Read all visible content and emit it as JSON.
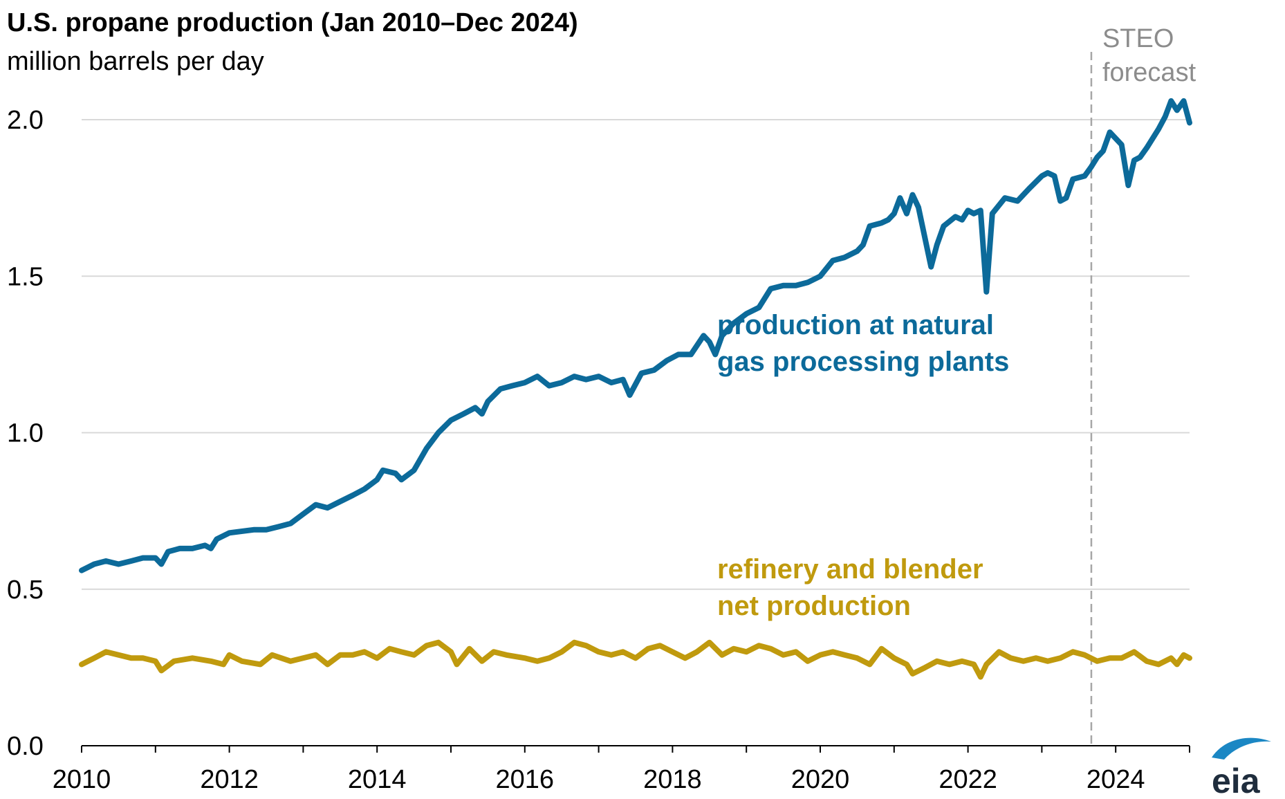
{
  "title": "U.S. propane production (Jan 2010–Dec 2024)",
  "subtitle": "million barrels per day",
  "logo": "eia",
  "colors": {
    "gas_plants": "#0c6a9a",
    "refinery": "#c09a0e",
    "grid": "#d9d9d9",
    "forecast_line": "#a6a6a6",
    "logo_swoosh": "#1b87c4"
  },
  "chart_data": {
    "type": "line",
    "title": "U.S. propane production (Jan 2010–Dec 2024)",
    "ylabel": "million barrels per day",
    "xlabel": "",
    "x_range": [
      2010.0,
      2025.0
    ],
    "ylim": [
      0.0,
      2.0
    ],
    "yticks": [
      "0.0",
      "0.5",
      "1.0",
      "1.5",
      "2.0"
    ],
    "xticks": [
      "2010",
      "2012",
      "2014",
      "2016",
      "2018",
      "2020",
      "2022",
      "2024"
    ],
    "grid": "horizontal",
    "forecast": {
      "start": 2023.67,
      "label_lines": [
        "STEO",
        "forecast"
      ]
    },
    "series": [
      {
        "name": "production at natural gas processing plants",
        "label_lines": [
          "production at natural",
          "gas processing plants"
        ],
        "color": "#0c6a9a",
        "points": [
          [
            2010.0,
            0.56
          ],
          [
            2010.17,
            0.58
          ],
          [
            2010.33,
            0.59
          ],
          [
            2010.5,
            0.58
          ],
          [
            2010.67,
            0.59
          ],
          [
            2010.83,
            0.6
          ],
          [
            2011.0,
            0.6
          ],
          [
            2011.08,
            0.58
          ],
          [
            2011.17,
            0.62
          ],
          [
            2011.33,
            0.63
          ],
          [
            2011.5,
            0.63
          ],
          [
            2011.67,
            0.64
          ],
          [
            2011.75,
            0.63
          ],
          [
            2011.83,
            0.66
          ],
          [
            2012.0,
            0.68
          ],
          [
            2012.33,
            0.69
          ],
          [
            2012.5,
            0.69
          ],
          [
            2012.67,
            0.7
          ],
          [
            2012.83,
            0.71
          ],
          [
            2013.0,
            0.74
          ],
          [
            2013.17,
            0.77
          ],
          [
            2013.33,
            0.76
          ],
          [
            2013.5,
            0.78
          ],
          [
            2013.67,
            0.8
          ],
          [
            2013.83,
            0.82
          ],
          [
            2014.0,
            0.85
          ],
          [
            2014.08,
            0.88
          ],
          [
            2014.25,
            0.87
          ],
          [
            2014.33,
            0.85
          ],
          [
            2014.5,
            0.88
          ],
          [
            2014.67,
            0.95
          ],
          [
            2014.83,
            1.0
          ],
          [
            2015.0,
            1.04
          ],
          [
            2015.17,
            1.06
          ],
          [
            2015.33,
            1.08
          ],
          [
            2015.42,
            1.06
          ],
          [
            2015.5,
            1.1
          ],
          [
            2015.67,
            1.14
          ],
          [
            2015.83,
            1.15
          ],
          [
            2016.0,
            1.16
          ],
          [
            2016.17,
            1.18
          ],
          [
            2016.33,
            1.15
          ],
          [
            2016.5,
            1.16
          ],
          [
            2016.67,
            1.18
          ],
          [
            2016.83,
            1.17
          ],
          [
            2017.0,
            1.18
          ],
          [
            2017.17,
            1.16
          ],
          [
            2017.33,
            1.17
          ],
          [
            2017.42,
            1.12
          ],
          [
            2017.58,
            1.19
          ],
          [
            2017.75,
            1.2
          ],
          [
            2017.92,
            1.23
          ],
          [
            2018.08,
            1.25
          ],
          [
            2018.25,
            1.25
          ],
          [
            2018.42,
            1.31
          ],
          [
            2018.5,
            1.29
          ],
          [
            2018.58,
            1.25
          ],
          [
            2018.67,
            1.31
          ],
          [
            2018.83,
            1.35
          ],
          [
            2019.0,
            1.38
          ],
          [
            2019.17,
            1.4
          ],
          [
            2019.33,
            1.46
          ],
          [
            2019.5,
            1.47
          ],
          [
            2019.67,
            1.47
          ],
          [
            2019.83,
            1.48
          ],
          [
            2020.0,
            1.5
          ],
          [
            2020.17,
            1.55
          ],
          [
            2020.33,
            1.56
          ],
          [
            2020.5,
            1.58
          ],
          [
            2020.58,
            1.6
          ],
          [
            2020.67,
            1.66
          ],
          [
            2020.83,
            1.67
          ],
          [
            2020.92,
            1.68
          ],
          [
            2021.0,
            1.7
          ],
          [
            2021.08,
            1.75
          ],
          [
            2021.17,
            1.7
          ],
          [
            2021.25,
            1.76
          ],
          [
            2021.33,
            1.72
          ],
          [
            2021.5,
            1.53
          ],
          [
            2021.58,
            1.6
          ],
          [
            2021.67,
            1.66
          ],
          [
            2021.83,
            1.69
          ],
          [
            2021.92,
            1.68
          ],
          [
            2022.0,
            1.71
          ],
          [
            2022.08,
            1.7
          ],
          [
            2022.17,
            1.71
          ],
          [
            2022.25,
            1.45
          ],
          [
            2022.33,
            1.7
          ],
          [
            2022.5,
            1.75
          ],
          [
            2022.67,
            1.74
          ],
          [
            2022.83,
            1.78
          ],
          [
            2023.0,
            1.82
          ],
          [
            2023.08,
            1.83
          ],
          [
            2023.17,
            1.82
          ],
          [
            2023.25,
            1.74
          ],
          [
            2023.33,
            1.75
          ],
          [
            2023.42,
            1.81
          ],
          [
            2023.58,
            1.82
          ],
          [
            2023.67,
            1.85
          ],
          [
            2023.75,
            1.88
          ],
          [
            2023.83,
            1.9
          ],
          [
            2023.92,
            1.96
          ],
          [
            2024.0,
            1.94
          ],
          [
            2024.08,
            1.92
          ],
          [
            2024.17,
            1.79
          ],
          [
            2024.25,
            1.87
          ],
          [
            2024.33,
            1.88
          ],
          [
            2024.42,
            1.91
          ],
          [
            2024.58,
            1.97
          ],
          [
            2024.67,
            2.01
          ],
          [
            2024.75,
            2.06
          ],
          [
            2024.83,
            2.03
          ],
          [
            2024.92,
            2.06
          ],
          [
            2025.0,
            1.99
          ]
        ]
      },
      {
        "name": "refinery and blender net production",
        "label_lines": [
          "refinery and blender",
          "net production"
        ],
        "color": "#c09a0e",
        "points": [
          [
            2010.0,
            0.26
          ],
          [
            2010.17,
            0.28
          ],
          [
            2010.33,
            0.3
          ],
          [
            2010.5,
            0.29
          ],
          [
            2010.67,
            0.28
          ],
          [
            2010.83,
            0.28
          ],
          [
            2011.0,
            0.27
          ],
          [
            2011.08,
            0.24
          ],
          [
            2011.25,
            0.27
          ],
          [
            2011.5,
            0.28
          ],
          [
            2011.75,
            0.27
          ],
          [
            2011.92,
            0.26
          ],
          [
            2012.0,
            0.29
          ],
          [
            2012.17,
            0.27
          ],
          [
            2012.42,
            0.26
          ],
          [
            2012.58,
            0.29
          ],
          [
            2012.83,
            0.27
          ],
          [
            2013.0,
            0.28
          ],
          [
            2013.17,
            0.29
          ],
          [
            2013.33,
            0.26
          ],
          [
            2013.5,
            0.29
          ],
          [
            2013.67,
            0.29
          ],
          [
            2013.83,
            0.3
          ],
          [
            2014.0,
            0.28
          ],
          [
            2014.17,
            0.31
          ],
          [
            2014.33,
            0.3
          ],
          [
            2014.5,
            0.29
          ],
          [
            2014.67,
            0.32
          ],
          [
            2014.83,
            0.33
          ],
          [
            2015.0,
            0.3
          ],
          [
            2015.08,
            0.26
          ],
          [
            2015.25,
            0.31
          ],
          [
            2015.42,
            0.27
          ],
          [
            2015.58,
            0.3
          ],
          [
            2015.75,
            0.29
          ],
          [
            2016.0,
            0.28
          ],
          [
            2016.17,
            0.27
          ],
          [
            2016.33,
            0.28
          ],
          [
            2016.5,
            0.3
          ],
          [
            2016.67,
            0.33
          ],
          [
            2016.83,
            0.32
          ],
          [
            2017.0,
            0.3
          ],
          [
            2017.17,
            0.29
          ],
          [
            2017.33,
            0.3
          ],
          [
            2017.5,
            0.28
          ],
          [
            2017.67,
            0.31
          ],
          [
            2017.83,
            0.32
          ],
          [
            2018.0,
            0.3
          ],
          [
            2018.17,
            0.28
          ],
          [
            2018.33,
            0.3
          ],
          [
            2018.5,
            0.33
          ],
          [
            2018.67,
            0.29
          ],
          [
            2018.83,
            0.31
          ],
          [
            2019.0,
            0.3
          ],
          [
            2019.17,
            0.32
          ],
          [
            2019.33,
            0.31
          ],
          [
            2019.5,
            0.29
          ],
          [
            2019.67,
            0.3
          ],
          [
            2019.83,
            0.27
          ],
          [
            2020.0,
            0.29
          ],
          [
            2020.17,
            0.3
          ],
          [
            2020.33,
            0.29
          ],
          [
            2020.5,
            0.28
          ],
          [
            2020.67,
            0.26
          ],
          [
            2020.83,
            0.31
          ],
          [
            2021.0,
            0.28
          ],
          [
            2021.17,
            0.26
          ],
          [
            2021.25,
            0.23
          ],
          [
            2021.42,
            0.25
          ],
          [
            2021.58,
            0.27
          ],
          [
            2021.75,
            0.26
          ],
          [
            2021.92,
            0.27
          ],
          [
            2022.08,
            0.26
          ],
          [
            2022.17,
            0.22
          ],
          [
            2022.25,
            0.26
          ],
          [
            2022.42,
            0.3
          ],
          [
            2022.58,
            0.28
          ],
          [
            2022.75,
            0.27
          ],
          [
            2022.92,
            0.28
          ],
          [
            2023.08,
            0.27
          ],
          [
            2023.25,
            0.28
          ],
          [
            2023.42,
            0.3
          ],
          [
            2023.58,
            0.29
          ],
          [
            2023.75,
            0.27
          ],
          [
            2023.92,
            0.28
          ],
          [
            2024.08,
            0.28
          ],
          [
            2024.25,
            0.3
          ],
          [
            2024.42,
            0.27
          ],
          [
            2024.58,
            0.26
          ],
          [
            2024.75,
            0.28
          ],
          [
            2024.83,
            0.26
          ],
          [
            2024.92,
            0.29
          ],
          [
            2025.0,
            0.28
          ]
        ]
      }
    ]
  }
}
